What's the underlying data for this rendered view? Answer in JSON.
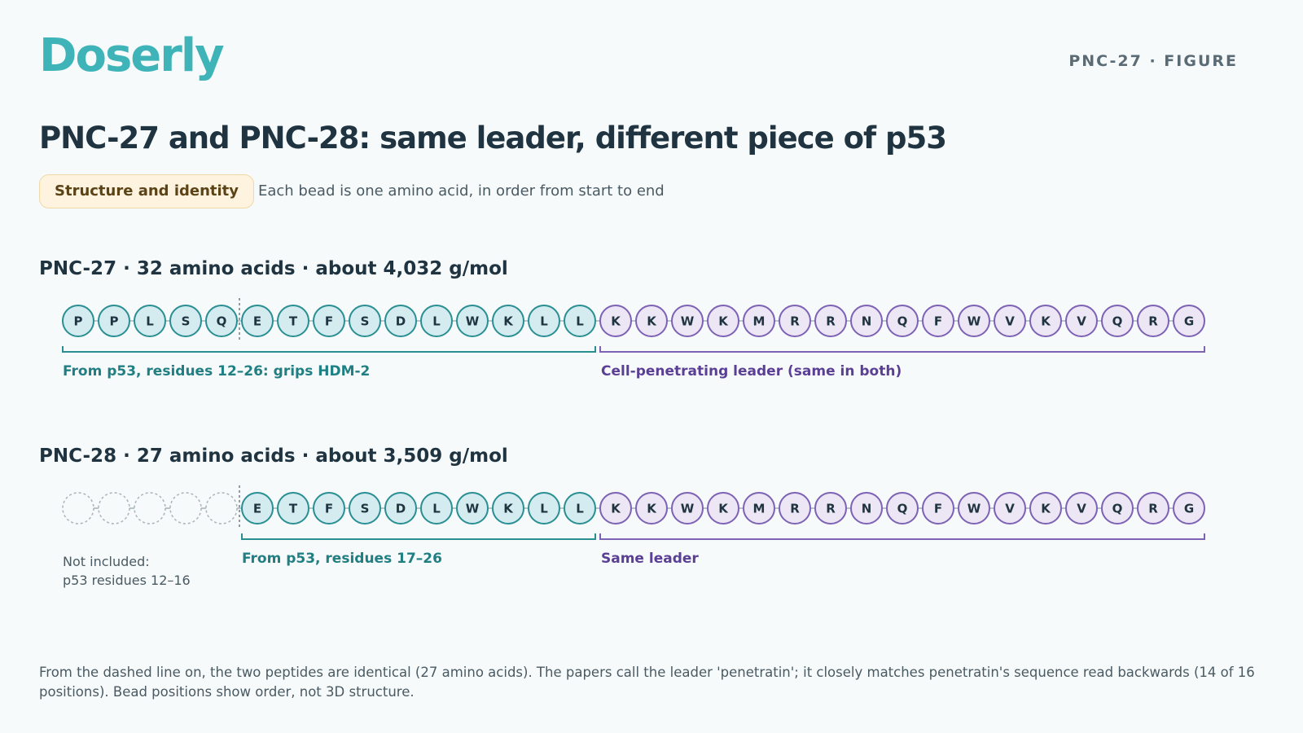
{
  "header": {
    "logo": "Doserly",
    "figure_label": "PNC-27 · FIGURE"
  },
  "title": "PNC-27 and PNC-28: same leader, different piece of p53",
  "badge": "Structure and identity",
  "subtitle": "Each bead is one amino acid, in order from start to end",
  "colors": {
    "teal_fill": "#d4ecef",
    "teal_stroke": "#2a8f93",
    "purple_fill": "#ece6f5",
    "purple_stroke": "#7d62b5",
    "missing_stroke": "#a9b3b8"
  },
  "pnc27": {
    "heading": "PNC-27 · 32 amino acids · about 4,032 g/mol",
    "p53_part": [
      "P",
      "P",
      "L",
      "S",
      "Q",
      "E",
      "T",
      "F",
      "S",
      "D",
      "L",
      "W",
      "K",
      "L",
      "L"
    ],
    "leader": [
      "K",
      "K",
      "W",
      "K",
      "M",
      "R",
      "R",
      "N",
      "Q",
      "F",
      "W",
      "V",
      "K",
      "V",
      "Q",
      "R",
      "G"
    ],
    "p53_label": "From p53, residues 12–26: grips HDM-2",
    "leader_label": "Cell-penetrating leader (same in both)"
  },
  "pnc28": {
    "heading": "PNC-28 · 27 amino acids · about 3,509 g/mol",
    "missing_count": 5,
    "p53_part": [
      "E",
      "T",
      "F",
      "S",
      "D",
      "L",
      "W",
      "K",
      "L",
      "L"
    ],
    "leader": [
      "K",
      "K",
      "W",
      "K",
      "M",
      "R",
      "R",
      "N",
      "Q",
      "F",
      "W",
      "V",
      "K",
      "V",
      "Q",
      "R",
      "G"
    ],
    "missing_label_line1": "Not included:",
    "missing_label_line2": "p53 residues 12–16",
    "p53_label": "From p53, residues 17–26",
    "leader_label": "Same leader"
  },
  "footnote": "From the dashed line on, the two peptides are identical (27 amino acids). The papers call the leader 'penetratin'; it closely matches penetratin's sequence read backwards (14 of 16 positions). Bead positions show order, not 3D structure."
}
